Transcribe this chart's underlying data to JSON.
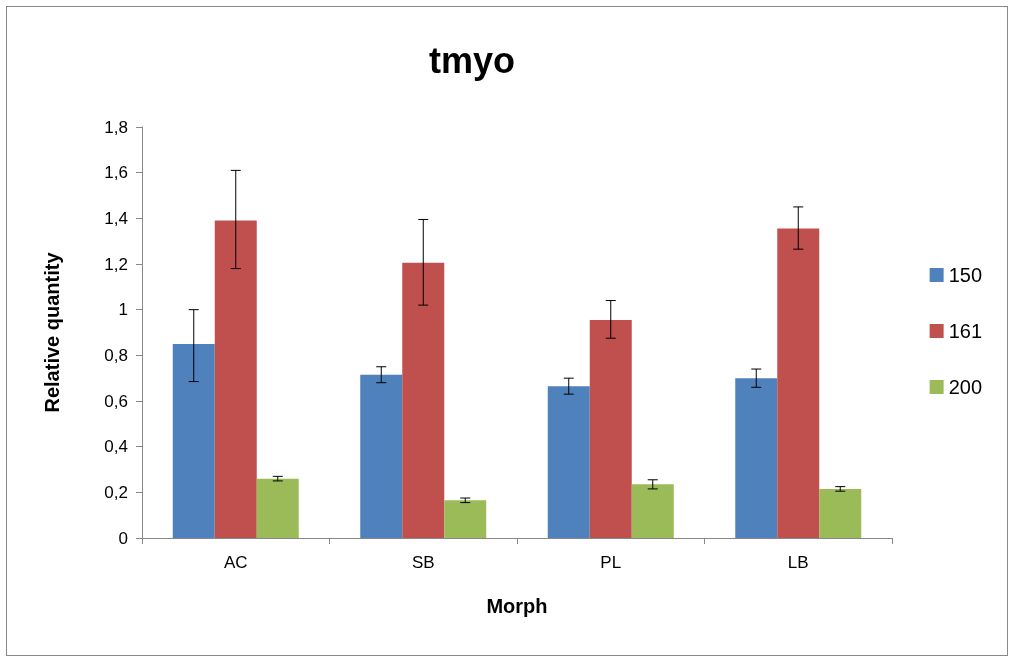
{
  "chart_data": {
    "type": "bar",
    "title": "tmyo",
    "xlabel": "Morph",
    "ylabel": "Relative quantity",
    "categories": [
      "AC",
      "SB",
      "PL",
      "LB"
    ],
    "series": [
      {
        "name": "150",
        "color": "#4f81bd",
        "values": [
          0.85,
          0.715,
          0.665,
          0.7
        ],
        "errors": [
          [
            0.685,
            1.0
          ],
          [
            0.68,
            0.75
          ],
          [
            0.63,
            0.7
          ],
          [
            0.66,
            0.74
          ]
        ]
      },
      {
        "name": "161",
        "color": "#c0504d",
        "values": [
          1.39,
          1.205,
          0.955,
          1.355
        ],
        "errors": [
          [
            1.18,
            1.61
          ],
          [
            1.02,
            1.395
          ],
          [
            0.875,
            1.04
          ],
          [
            1.265,
            1.45
          ]
        ]
      },
      {
        "name": "200",
        "color": "#9bbb59",
        "values": [
          0.26,
          0.165,
          0.235,
          0.215
        ],
        "errors": [
          [
            0.25,
            0.27
          ],
          [
            0.155,
            0.175
          ],
          [
            0.215,
            0.255
          ],
          [
            0.205,
            0.225
          ]
        ]
      }
    ],
    "ylim": [
      0,
      1.8
    ],
    "yticks": [
      0,
      {
        "value": 0.2,
        "label": "0,2"
      },
      {
        "value": 0.4,
        "label": "0,4"
      },
      {
        "value": 0.6,
        "label": "0,6"
      },
      {
        "value": 0.8,
        "label": "0,8"
      },
      1,
      {
        "value": 1.2,
        "label": "1,2"
      },
      {
        "value": 1.4,
        "label": "1,4"
      },
      {
        "value": 1.6,
        "label": "1,6"
      },
      {
        "value": 1.8,
        "label": "1,8"
      }
    ],
    "grid": false,
    "legend": "right"
  }
}
